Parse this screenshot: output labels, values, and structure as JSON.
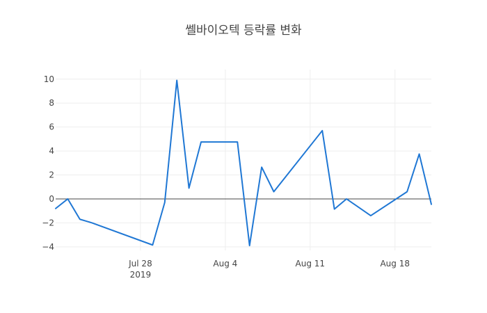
{
  "chart_data": {
    "type": "line",
    "title": "쎌바이오텍 등락률 변화",
    "xlabel": "",
    "ylabel": "",
    "xlim": [
      "2019-07-21",
      "2019-08-21"
    ],
    "ylim": [
      -4.3,
      10.8
    ],
    "x_ticks": [
      {
        "value": "2019-07-28",
        "label": "Jul 28",
        "sublabel": "2019"
      },
      {
        "value": "2019-08-04",
        "label": "Aug 4",
        "sublabel": ""
      },
      {
        "value": "2019-08-11",
        "label": "Aug 11",
        "sublabel": ""
      },
      {
        "value": "2019-08-18",
        "label": "Aug 18",
        "sublabel": ""
      }
    ],
    "y_ticks": [
      {
        "value": -4,
        "label": "−4"
      },
      {
        "value": -2,
        "label": "−2"
      },
      {
        "value": 0,
        "label": "0"
      },
      {
        "value": 2,
        "label": "2"
      },
      {
        "value": 4,
        "label": "4"
      },
      {
        "value": 6,
        "label": "6"
      },
      {
        "value": 8,
        "label": "8"
      },
      {
        "value": 10,
        "label": "10"
      }
    ],
    "grid": true,
    "zero_line": true,
    "legend": "none",
    "series": [
      {
        "color": "#1f77d4",
        "x": [
          "2019-07-21",
          "2019-07-22",
          "2019-07-23",
          "2019-07-24",
          "2019-07-29",
          "2019-07-30",
          "2019-07-31",
          "2019-08-01",
          "2019-08-02",
          "2019-08-05",
          "2019-08-06",
          "2019-08-07",
          "2019-08-08",
          "2019-08-12",
          "2019-08-13",
          "2019-08-14",
          "2019-08-16",
          "2019-08-19",
          "2019-08-20",
          "2019-08-21"
        ],
        "y": [
          -0.8,
          0.0,
          -1.7,
          -2.0,
          -3.85,
          -0.3,
          9.9,
          0.9,
          4.75,
          4.75,
          -3.9,
          2.65,
          0.6,
          5.7,
          -0.85,
          0.0,
          -1.4,
          0.6,
          3.75,
          -0.45
        ]
      }
    ]
  }
}
